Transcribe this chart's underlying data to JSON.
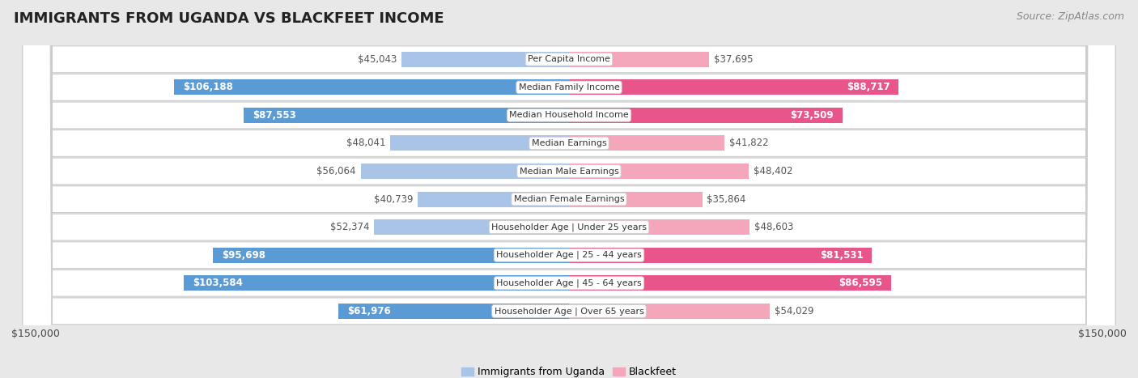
{
  "title": "IMMIGRANTS FROM UGANDA VS BLACKFEET INCOME",
  "source": "Source: ZipAtlas.com",
  "categories": [
    "Per Capita Income",
    "Median Family Income",
    "Median Household Income",
    "Median Earnings",
    "Median Male Earnings",
    "Median Female Earnings",
    "Householder Age | Under 25 years",
    "Householder Age | 25 - 44 years",
    "Householder Age | 45 - 64 years",
    "Householder Age | Over 65 years"
  ],
  "uganda_values": [
    45043,
    106188,
    87553,
    48041,
    56064,
    40739,
    52374,
    95698,
    103584,
    61976
  ],
  "blackfeet_values": [
    37695,
    88717,
    73509,
    41822,
    48402,
    35864,
    48603,
    81531,
    86595,
    54029
  ],
  "uganda_labels": [
    "$45,043",
    "$106,188",
    "$87,553",
    "$48,041",
    "$56,064",
    "$40,739",
    "$52,374",
    "$95,698",
    "$103,584",
    "$61,976"
  ],
  "blackfeet_labels": [
    "$37,695",
    "$88,717",
    "$73,509",
    "$41,822",
    "$48,402",
    "$35,864",
    "$48,603",
    "$81,531",
    "$86,595",
    "$54,029"
  ],
  "uganda_color_light": "#aac4e8",
  "uganda_color_dark": "#5b9bd5",
  "blackfeet_color_light": "#f4a7bb",
  "blackfeet_color_dark": "#e8558a",
  "max_value": 150000,
  "legend_uganda": "Immigrants from Uganda",
  "legend_blackfeet": "Blackfeet",
  "background_color": "#e8e8e8",
  "row_background": "#ffffff",
  "title_fontsize": 13,
  "source_fontsize": 9,
  "label_fontsize": 8.5,
  "category_fontsize": 8.0,
  "uganda_threshold": 60000,
  "blackfeet_threshold": 60000
}
